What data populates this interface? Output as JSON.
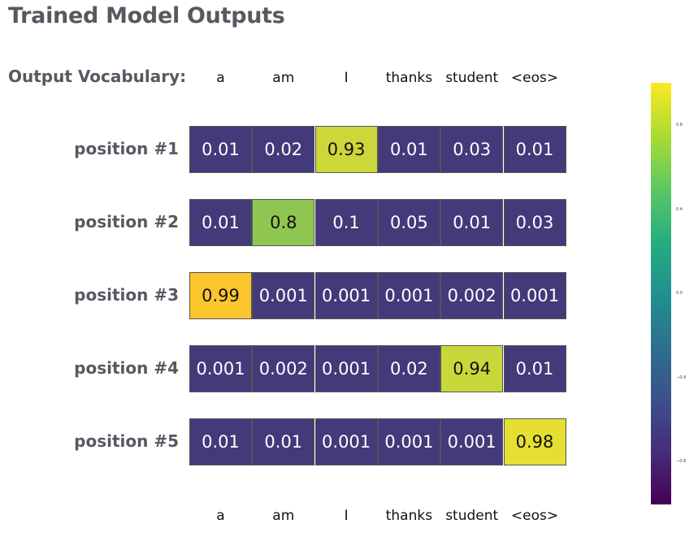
{
  "title": "Trained Model Outputs",
  "vocab_label": "Output Vocabulary:",
  "chart_data": {
    "type": "heatmap",
    "categories": [
      "a",
      "am",
      "I",
      "thanks",
      "student",
      "<eos>"
    ],
    "rows": [
      "position #1",
      "position #2",
      "position #3",
      "position #4",
      "position #5"
    ],
    "values": [
      [
        "0.01",
        "0.02",
        "0.93",
        "0.01",
        "0.03",
        "0.01"
      ],
      [
        "0.01",
        "0.8",
        "0.1",
        "0.05",
        "0.01",
        "0.03"
      ],
      [
        "0.99",
        "0.001",
        "0.001",
        "0.001",
        "0.002",
        "0.001"
      ],
      [
        "0.001",
        "0.002",
        "0.001",
        "0.02",
        "0.94",
        "0.01"
      ],
      [
        "0.01",
        "0.01",
        "0.001",
        "0.001",
        "0.001",
        "0.98"
      ]
    ],
    "highlight_colors": {
      "0.93": "#cdd73a",
      "0.8": "#8fc652",
      "0.99": "#fbc52d",
      "0.94": "#c8d83b",
      "0.98": "#e6df33"
    },
    "low_color": "#433a7a",
    "colorbar": {
      "range": [
        -1,
        1
      ],
      "ticks": [
        "0.8",
        "0.4",
        "0.0",
        "−0.4",
        "−0.8"
      ],
      "colormap": "viridis"
    }
  }
}
